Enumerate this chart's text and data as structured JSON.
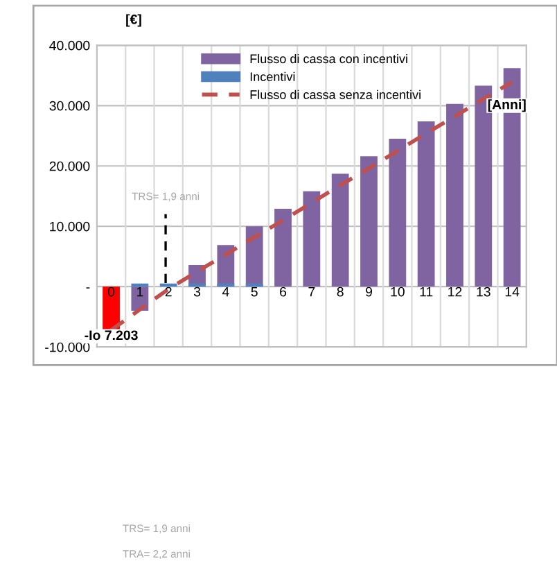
{
  "chart_data": {
    "type": "bar",
    "xlabel": "[Anni]",
    "ylabel": "[€]",
    "categories": [
      "0",
      "1",
      "2",
      "3",
      "4",
      "5",
      "6",
      "7",
      "8",
      "9",
      "10",
      "11",
      "12",
      "13",
      "14"
    ],
    "series": [
      {
        "name": "Flusso di cassa con incentivi",
        "color": "#8064a2",
        "colors": [
          "#ff0000",
          "#8064a2",
          "#8064a2",
          "#8064a2",
          "#8064a2",
          "#8064a2",
          "#8064a2",
          "#8064a2",
          "#8064a2",
          "#8064a2",
          "#8064a2",
          "#8064a2",
          "#8064a2",
          "#8064a2",
          "#8064a2"
        ],
        "values": [
          -7203,
          -4000,
          null,
          3600,
          6900,
          10000,
          12900,
          15800,
          18700,
          21600,
          24500,
          27400,
          30300,
          33300,
          36200
        ],
        "value_labels": [
          "-Io 7.203",
          null,
          null,
          null,
          null,
          null,
          null,
          null,
          null,
          null,
          null,
          null,
          null,
          null,
          null
        ]
      },
      {
        "name": "Incentivi",
        "color": "#4f81bd",
        "values": [
          null,
          500,
          500,
          500,
          500,
          500,
          null,
          null,
          null,
          null,
          null,
          null,
          null,
          null,
          null
        ]
      },
      {
        "name": "Flusso di cassa senza incentivi",
        "type": "line",
        "color": "#c0504d",
        "line_style": "dashed",
        "values": [
          -7200,
          -3800,
          -400,
          2500,
          5300,
          8200,
          11000,
          13900,
          16800,
          19600,
          22500,
          25400,
          28200,
          31100,
          33900
        ]
      }
    ],
    "ylim": [
      -10000,
      40000
    ],
    "yticks": [
      {
        "value": -10000,
        "label": "-10.000"
      },
      {
        "value": 0,
        "label": "-"
      },
      {
        "value": 10000,
        "label": "10.000"
      },
      {
        "value": 20000,
        "label": "20.000"
      },
      {
        "value": 30000,
        "label": "30.000"
      },
      {
        "value": 40000,
        "label": "40.000"
      }
    ],
    "annotations": [
      {
        "text": "TRS= 1,9 anni",
        "y": 0
      },
      "TRS= 1,9 anni",
      "TRA= 2,2 anni"
    ],
    "grid": true,
    "legend": "top"
  }
}
